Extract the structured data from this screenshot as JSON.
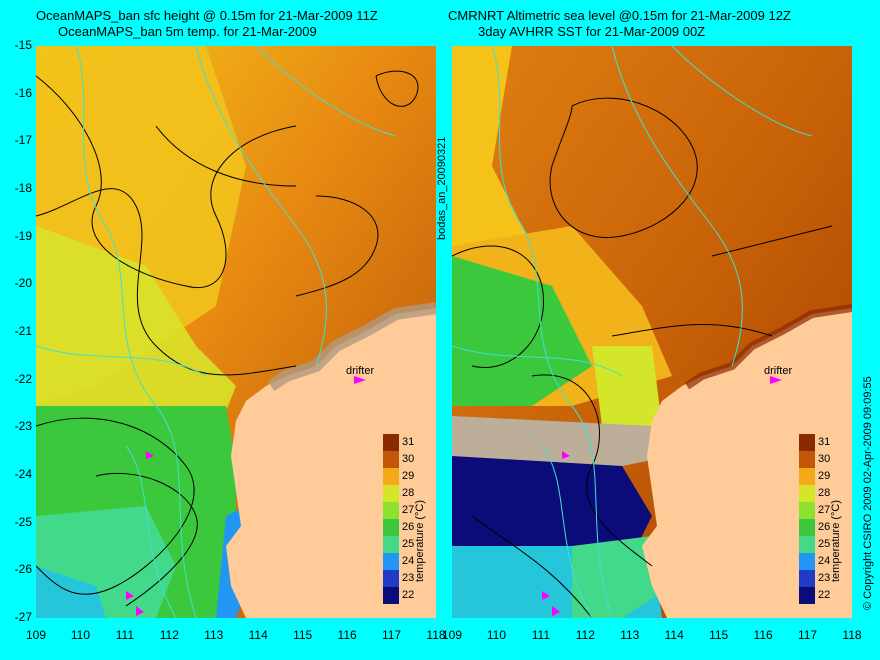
{
  "left_panel": {
    "title_line1": "OceanMAPS_ban sfc height @ 0.15m for 21-Mar-2009 11Z",
    "title_line2": "OceanMAPS_ban 5m temp. for 21-Mar-2009",
    "drifter_label": "drifter",
    "colorbar_title": "temperature (°C)"
  },
  "right_panel": {
    "title_line1": "CMRNRT Altimetric sea level  @0.15m  for 21-Mar-2009 12Z",
    "title_line2": "3day AVHRR SST for 21-Mar-2009 00Z",
    "drifter_label": "drifter",
    "colorbar_title": "temperature (°C)"
  },
  "side_label": "bodas_an_20090321",
  "copyright": "© Copyright CSIRO 2009   02-Apr-2009 09:09:55",
  "y_ticks": [
    "-15",
    "-16",
    "-17",
    "-18",
    "-19",
    "-20",
    "-21",
    "-22",
    "-23",
    "-24",
    "-25",
    "-26",
    "-27"
  ],
  "x_ticks": [
    "109",
    "110",
    "111",
    "112",
    "113",
    "114",
    "115",
    "116",
    "117",
    "118"
  ],
  "colorbar_ticks": [
    "31",
    "30",
    "29",
    "28",
    "27",
    "26",
    "25",
    "24",
    "23",
    "22"
  ],
  "colors": {
    "background": "#00ffff",
    "land": "#ffcc99",
    "coast_contour": "#40e0d0",
    "drifter": "#ff00ff",
    "colormap": [
      "#0b0b7a",
      "#1e3cc8",
      "#2196f3",
      "#26c6da",
      "#43d98a",
      "#3cc83c",
      "#8ee030",
      "#d4e62a",
      "#f5d21a",
      "#f5a81a",
      "#e07a10",
      "#c05808",
      "#8b2a00"
    ]
  }
}
